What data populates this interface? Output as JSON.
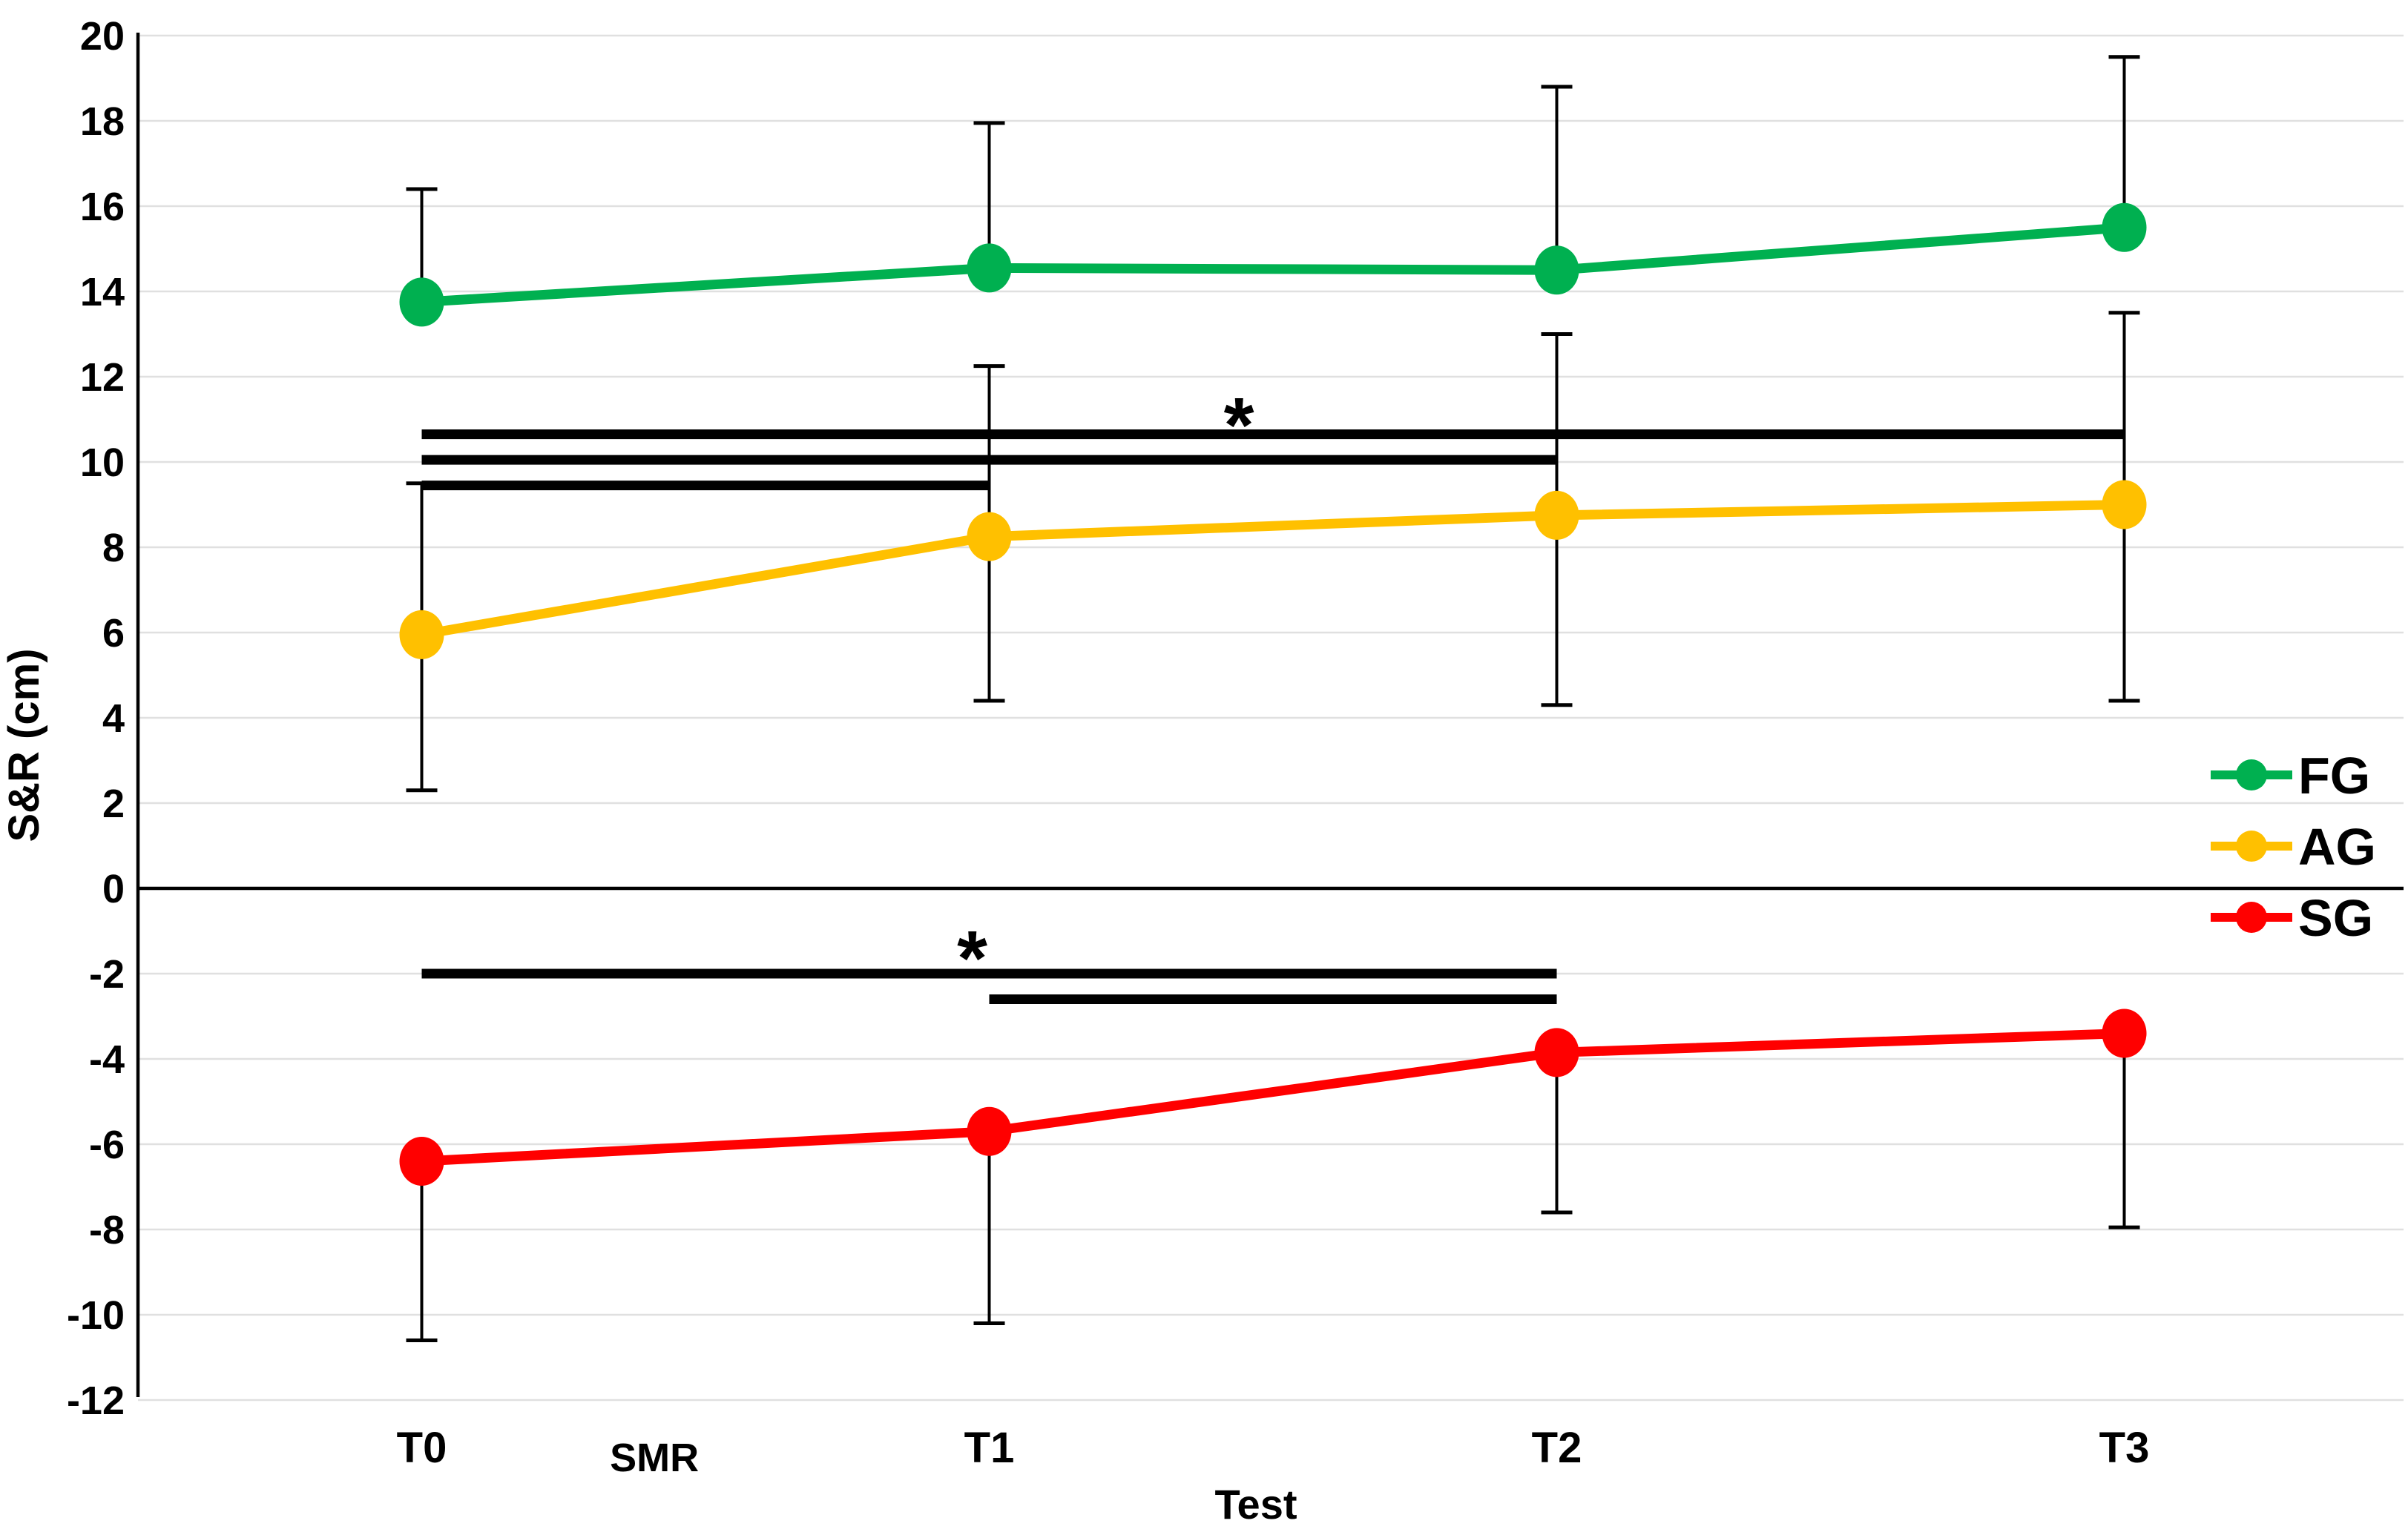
{
  "chart_data": {
    "type": "line",
    "title": "",
    "xlabel": "Test",
    "ylabel": "S&R (cm)",
    "categories": [
      "T0",
      "T1",
      "T2",
      "T3"
    ],
    "x_axis_secondary_label": {
      "text": "SMR",
      "between_categories": [
        0,
        1
      ],
      "position_frac": 0.41
    },
    "ylim": [
      -12,
      20
    ],
    "ytick_step": 2,
    "yticks": [
      20,
      18,
      16,
      14,
      12,
      10,
      8,
      6,
      4,
      2,
      0,
      -2,
      -4,
      -6,
      -8,
      -10,
      -12
    ],
    "grid": true,
    "gridline_color": "#E0E0E0",
    "axis_color": "#000000",
    "series": [
      {
        "name": "FG",
        "color": "#00B050",
        "values": [
          13.75,
          14.55,
          14.5,
          15.5
        ],
        "err_upper": [
          16.4,
          17.95,
          18.8,
          19.5
        ],
        "err_lower": [
          null,
          null,
          null,
          null
        ]
      },
      {
        "name": "AG",
        "color": "#FFC000",
        "values": [
          5.95,
          8.25,
          8.75,
          9.0
        ],
        "err_upper": [
          9.5,
          12.25,
          13.0,
          13.5
        ],
        "err_lower": [
          2.3,
          4.4,
          4.3,
          4.4
        ]
      },
      {
        "name": "SG",
        "color": "#FF0000",
        "values": [
          -6.4,
          -5.7,
          -3.85,
          -3.4
        ],
        "err_upper": [
          null,
          null,
          null,
          null
        ],
        "err_lower": [
          -10.6,
          -10.2,
          -7.6,
          -7.95
        ]
      }
    ],
    "significance_lines": [
      {
        "from": 0,
        "to": 3,
        "y": 10.65,
        "group": "upper"
      },
      {
        "from": 0,
        "to": 2,
        "y": 10.05,
        "group": "upper"
      },
      {
        "from": 0,
        "to": 1,
        "y": 9.45,
        "group": "upper"
      },
      {
        "from": 0,
        "to": 2,
        "y": -2.0,
        "group": "lower"
      },
      {
        "from": 1,
        "to": 2,
        "y": -2.6,
        "group": "lower"
      }
    ],
    "annotations": [
      {
        "text": "*",
        "x_cat": 1.44,
        "y": 11.2
      },
      {
        "text": "*",
        "x_cat": 0.97,
        "y": -1.3
      }
    ],
    "legend": {
      "position": "right",
      "items": [
        {
          "label": "FG",
          "color": "#00B050"
        },
        {
          "label": "AG",
          "color": "#FFC000"
        },
        {
          "label": "SG",
          "color": "#FF0000"
        }
      ]
    }
  }
}
